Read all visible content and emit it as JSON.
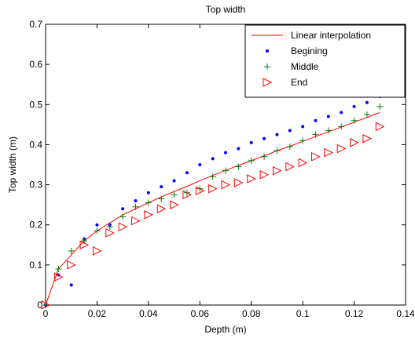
{
  "chart_data": {
    "type": "scatter",
    "title": "Top width",
    "xlabel": "Depth (m)",
    "ylabel": "Top width (m)",
    "xlim": [
      0,
      0.14
    ],
    "ylim": [
      0,
      0.7
    ],
    "xticks": [
      0,
      0.02,
      0.04,
      0.06,
      0.08,
      0.1,
      0.12,
      0.14
    ],
    "yticks": [
      0,
      0.1,
      0.2,
      0.3,
      0.4,
      0.5,
      0.6,
      0.7
    ],
    "xtick_labels": [
      "0",
      "0.02",
      "0.04",
      "0.06",
      "0.08",
      "0.1",
      "0.12",
      "0.14"
    ],
    "ytick_labels": [
      "0",
      "0.1",
      "0.2",
      "0.3",
      "0.4",
      "0.5",
      "0.6",
      "0.7"
    ],
    "grid": false,
    "legend_position": "top-right",
    "series": [
      {
        "name": "Linear interpolation",
        "style": "line",
        "color": "#ff0000",
        "x": [
          0,
          0.005,
          0.01,
          0.015,
          0.02,
          0.025,
          0.03,
          0.035,
          0.04,
          0.045,
          0.05,
          0.055,
          0.06,
          0.065,
          0.07,
          0.075,
          0.08,
          0.085,
          0.09,
          0.095,
          0.1,
          0.105,
          0.11,
          0.115,
          0.12,
          0.125,
          0.13
        ],
        "y": [
          0,
          0.09,
          0.125,
          0.16,
          0.185,
          0.205,
          0.225,
          0.24,
          0.255,
          0.27,
          0.283,
          0.296,
          0.31,
          0.323,
          0.336,
          0.348,
          0.36,
          0.372,
          0.385,
          0.396,
          0.408,
          0.42,
          0.432,
          0.444,
          0.456,
          0.468,
          0.48
        ]
      },
      {
        "name": "Begining",
        "style": "dot",
        "color": "#0000ff",
        "x": [
          0,
          0.005,
          0.01,
          0.015,
          0.02,
          0.025,
          0.03,
          0.035,
          0.04,
          0.045,
          0.05,
          0.055,
          0.06,
          0.065,
          0.07,
          0.075,
          0.08,
          0.085,
          0.09,
          0.095,
          0.1,
          0.105,
          0.11,
          0.115,
          0.12,
          0.125,
          0.13
        ],
        "y": [
          0,
          0.075,
          0.05,
          0.165,
          0.2,
          0.2,
          0.24,
          0.26,
          0.28,
          0.295,
          0.31,
          0.33,
          0.35,
          0.365,
          0.38,
          0.39,
          0.405,
          0.415,
          0.425,
          0.435,
          0.445,
          0.46,
          0.47,
          0.48,
          0.495,
          0.505,
          0.52
        ]
      },
      {
        "name": "Middle",
        "style": "plus",
        "color": "#008000",
        "x": [
          0,
          0.005,
          0.01,
          0.015,
          0.02,
          0.025,
          0.03,
          0.035,
          0.04,
          0.045,
          0.05,
          0.055,
          0.06,
          0.065,
          0.07,
          0.075,
          0.08,
          0.085,
          0.09,
          0.095,
          0.1,
          0.105,
          0.11,
          0.115,
          0.12,
          0.125,
          0.13
        ],
        "y": [
          0,
          0.09,
          0.135,
          0.16,
          0.185,
          0.195,
          0.22,
          0.245,
          0.255,
          0.265,
          0.275,
          0.28,
          0.29,
          0.32,
          0.335,
          0.345,
          0.36,
          0.37,
          0.385,
          0.395,
          0.41,
          0.425,
          0.435,
          0.445,
          0.46,
          0.475,
          0.495
        ]
      },
      {
        "name": "End",
        "style": "triangle-right",
        "color": "#ff0000",
        "x": [
          0,
          0.005,
          0.01,
          0.015,
          0.02,
          0.025,
          0.03,
          0.035,
          0.04,
          0.045,
          0.05,
          0.055,
          0.06,
          0.065,
          0.07,
          0.075,
          0.08,
          0.085,
          0.09,
          0.095,
          0.1,
          0.105,
          0.11,
          0.115,
          0.12,
          0.125,
          0.13
        ],
        "y": [
          0,
          0.07,
          0.1,
          0.15,
          0.135,
          0.18,
          0.195,
          0.21,
          0.225,
          0.24,
          0.25,
          0.275,
          0.285,
          0.29,
          0.3,
          0.305,
          0.315,
          0.325,
          0.335,
          0.345,
          0.355,
          0.37,
          0.38,
          0.39,
          0.405,
          0.415,
          0.445
        ]
      }
    ]
  }
}
